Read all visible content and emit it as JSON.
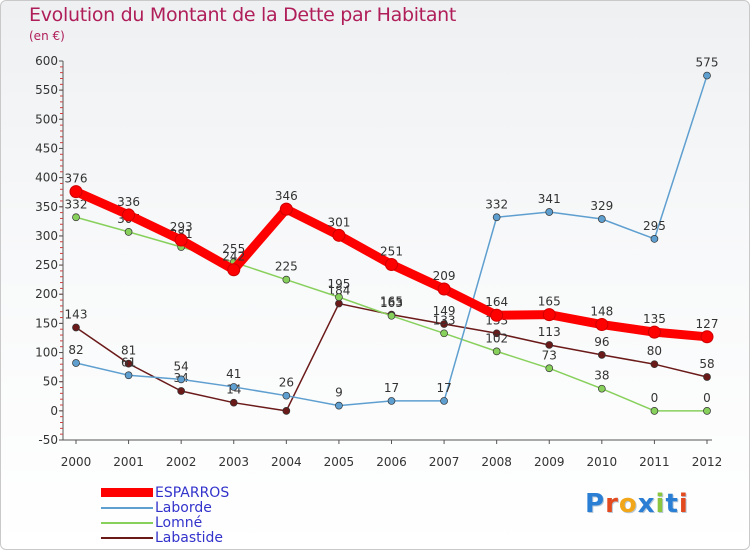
{
  "page": {
    "title": "Evolution du Montant de la Dette par Habitant",
    "subtitle": "(en €)",
    "logo": {
      "text": "Proxiti",
      "colors": [
        "#2a7fd4",
        "#e34a1f",
        "#f2a71b",
        "#2a7fd4",
        "#8cc63e",
        "#2a7fd4",
        "#e34a1f"
      ]
    }
  },
  "chart_data": {
    "type": "line",
    "x": [
      2000,
      2001,
      2002,
      2003,
      2004,
      2005,
      2006,
      2007,
      2008,
      2009,
      2010,
      2011,
      2012
    ],
    "ylim": [
      -50,
      600
    ],
    "yticks": [
      -50,
      0,
      50,
      100,
      150,
      200,
      250,
      300,
      350,
      400,
      450,
      500,
      550,
      600
    ],
    "grid": false,
    "legend_position": "bottom-left",
    "series": [
      {
        "name": "Labastide",
        "color": "#6b1a1a",
        "values": [
          143,
          81,
          34,
          14,
          0,
          184,
          165,
          149,
          133,
          113,
          96,
          80,
          58
        ],
        "labels": [
          "143",
          "81",
          "34",
          "14",
          "",
          "184",
          "165",
          "149",
          "133",
          "113",
          "96",
          "80",
          "58"
        ]
      },
      {
        "name": "Lomné",
        "color": "#88d05c",
        "values": [
          332,
          307,
          281,
          255,
          225,
          195,
          163,
          133,
          102,
          73,
          38,
          0,
          0
        ],
        "labels": [
          "332",
          "307",
          "281",
          "255",
          "225",
          "195",
          "163",
          "133",
          "102",
          "73",
          "38",
          "0",
          "0"
        ]
      },
      {
        "name": "Laborde",
        "color": "#5e9fd0",
        "values": [
          82,
          61,
          54,
          41,
          26,
          9,
          17,
          17,
          332,
          341,
          329,
          295,
          575
        ],
        "labels": [
          "82",
          "61",
          "54",
          "41",
          "26",
          "9",
          "17",
          "17",
          "332",
          "341",
          "329",
          "295",
          "575"
        ]
      },
      {
        "name": "ESPARROS",
        "color": "#ff0000",
        "values": [
          376,
          336,
          293,
          242,
          346,
          301,
          251,
          209,
          164,
          165,
          148,
          135,
          127
        ],
        "labels": [
          "376",
          "336",
          "293",
          "242",
          "346",
          "301",
          "251",
          "209",
          "164",
          "165",
          "148",
          "135",
          "127"
        ]
      }
    ],
    "legend": [
      "ESPARROS",
      "Laborde",
      "Lomné",
      "Labastide"
    ]
  }
}
